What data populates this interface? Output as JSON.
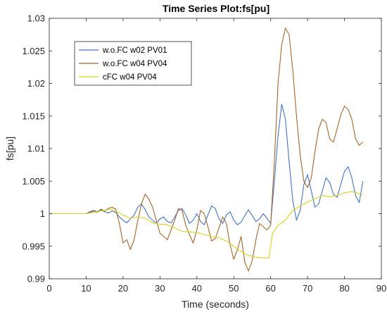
{
  "chart_data": {
    "type": "line",
    "title": "Time Series Plot:fs[pu]",
    "xlabel": "Time (seconds)",
    "ylabel": "fs[pu]",
    "xlim": [
      0,
      90
    ],
    "ylim": [
      0.99,
      1.03
    ],
    "xticks": [
      "0",
      "10",
      "20",
      "30",
      "40",
      "50",
      "60",
      "70",
      "80",
      "90"
    ],
    "yticks": [
      "0.99",
      "0.995",
      "1",
      "1.005",
      "1.01",
      "1.015",
      "1.02",
      "1.025",
      "1.03"
    ],
    "grid": false,
    "legend_position": "top-left",
    "series": [
      {
        "name": "w.o.FC w02 PV01",
        "color": "#4472c4",
        "points": [
          [
            0,
            1.0
          ],
          [
            10,
            1.0
          ],
          [
            11,
            1.0003
          ],
          [
            12,
            1.0005
          ],
          [
            13,
            1.0003
          ],
          [
            14,
            1.0006
          ],
          [
            15,
            1.0003
          ],
          [
            16,
            1.0001
          ],
          [
            17,
            1.0004
          ],
          [
            18,
            1.0002
          ],
          [
            19,
            0.9995
          ],
          [
            20,
            0.999
          ],
          [
            21,
            0.9986
          ],
          [
            22,
            0.9992
          ],
          [
            23,
            0.9998
          ],
          [
            24,
            1.001
          ],
          [
            25,
            1.0015
          ],
          [
            26,
            1.0006
          ],
          [
            27,
            0.9995
          ],
          [
            28,
            0.999
          ],
          [
            29,
            0.9985
          ],
          [
            30,
            0.9992
          ],
          [
            31,
            0.9995
          ],
          [
            32,
            0.9988
          ],
          [
            33,
            0.9986
          ],
          [
            34,
            0.9995
          ],
          [
            35,
            1.0005
          ],
          [
            36,
            1.0008
          ],
          [
            37,
            0.9998
          ],
          [
            38,
            0.9985
          ],
          [
            39,
            0.999
          ],
          [
            40,
            1.0
          ],
          [
            41,
            0.9988
          ],
          [
            42,
            0.9983
          ],
          [
            43,
            0.9998
          ],
          [
            44,
            1.0012
          ],
          [
            45,
            1.0008
          ],
          [
            46,
            0.9992
          ],
          [
            47,
            0.9985
          ],
          [
            48,
            0.9998
          ],
          [
            49,
            1.0003
          ],
          [
            50,
            0.999
          ],
          [
            51,
            0.9983
          ],
          [
            52,
            0.9987
          ],
          [
            53,
            0.9997
          ],
          [
            54,
            1.0006
          ],
          [
            55,
            0.9997
          ],
          [
            56,
            0.9988
          ],
          [
            57,
            0.9992
          ],
          [
            58,
            1.0
          ],
          [
            59,
            0.9993
          ],
          [
            60,
            0.9985
          ],
          [
            61,
            1.005
          ],
          [
            62,
            1.012
          ],
          [
            63,
            1.0168
          ],
          [
            64,
            1.0145
          ],
          [
            65,
            1.008
          ],
          [
            66,
            1.002
          ],
          [
            67,
            0.999
          ],
          [
            68,
            1.0005
          ],
          [
            69,
            1.0045
          ],
          [
            70,
            1.006
          ],
          [
            71,
            1.0035
          ],
          [
            72,
            1.001
          ],
          [
            73,
            1.0015
          ],
          [
            74,
            1.0035
          ],
          [
            75,
            1.0055
          ],
          [
            76,
            1.0048
          ],
          [
            77,
            1.003
          ],
          [
            78,
            1.0025
          ],
          [
            79,
            1.0045
          ],
          [
            80,
            1.0065
          ],
          [
            81,
            1.0072
          ],
          [
            82,
            1.0055
          ],
          [
            83,
            1.0028
          ],
          [
            84,
            1.0017
          ],
          [
            85,
            1.005
          ]
        ]
      },
      {
        "name": "w.o.FC w04 PV04",
        "color": "#a5652a",
        "points": [
          [
            0,
            1.0
          ],
          [
            10,
            1.0
          ],
          [
            11,
            1.0002
          ],
          [
            12,
            1.0004
          ],
          [
            13,
            1.0002
          ],
          [
            14,
            1.0007
          ],
          [
            15,
            1.0004
          ],
          [
            16,
            1.0008
          ],
          [
            17,
            1.001
          ],
          [
            18,
            1.0007
          ],
          [
            19,
            0.9985
          ],
          [
            20,
            0.9955
          ],
          [
            21,
            0.996
          ],
          [
            22,
            0.9945
          ],
          [
            23,
            0.996
          ],
          [
            24,
            0.999
          ],
          [
            25,
            1.0015
          ],
          [
            26,
            1.003
          ],
          [
            27,
            1.0022
          ],
          [
            28,
            1.001
          ],
          [
            29,
            0.999
          ],
          [
            30,
            0.997
          ],
          [
            31,
            0.9965
          ],
          [
            32,
            0.996
          ],
          [
            33,
            0.9975
          ],
          [
            34,
            0.999
          ],
          [
            35,
            1.0008
          ],
          [
            36,
            1.0005
          ],
          [
            37,
            0.9982
          ],
          [
            38,
            0.9968
          ],
          [
            39,
            0.9955
          ],
          [
            40,
            0.9975
          ],
          [
            41,
            1.0005
          ],
          [
            42,
            1.0
          ],
          [
            43,
            0.998
          ],
          [
            44,
            0.9958
          ],
          [
            45,
            0.9962
          ],
          [
            46,
            0.9978
          ],
          [
            47,
            0.9995
          ],
          [
            48,
            0.9985
          ],
          [
            49,
            0.9952
          ],
          [
            50,
            0.993
          ],
          [
            51,
            0.9945
          ],
          [
            52,
            0.9965
          ],
          [
            53,
            0.9925
          ],
          [
            54,
            0.9912
          ],
          [
            55,
            0.9928
          ],
          [
            56,
            0.996
          ],
          [
            57,
            0.9985
          ],
          [
            58,
            0.998
          ],
          [
            59,
            0.9975
          ],
          [
            60,
            0.9982
          ],
          [
            61,
            1.008
          ],
          [
            62,
            1.02
          ],
          [
            63,
            1.026
          ],
          [
            64,
            1.0285
          ],
          [
            65,
            1.0275
          ],
          [
            66,
            1.022
          ],
          [
            67,
            1.015
          ],
          [
            68,
            1.009
          ],
          [
            69,
            1.005
          ],
          [
            70,
            1.004
          ],
          [
            71,
            1.0055
          ],
          [
            72,
            1.0095
          ],
          [
            73,
            1.013
          ],
          [
            74,
            1.0145
          ],
          [
            75,
            1.014
          ],
          [
            76,
            1.0115
          ],
          [
            77,
            1.011
          ],
          [
            78,
            1.013
          ],
          [
            79,
            1.0152
          ],
          [
            80,
            1.0165
          ],
          [
            81,
            1.016
          ],
          [
            82,
            1.0145
          ],
          [
            83,
            1.0115
          ],
          [
            84,
            1.0105
          ],
          [
            85,
            1.011
          ]
        ]
      },
      {
        "name": "cFC w04 PV04",
        "color": "#d4d41f",
        "points": [
          [
            0,
            1.0
          ],
          [
            10,
            1.0
          ],
          [
            12,
            1.0002
          ],
          [
            14,
            1.0004
          ],
          [
            16,
            1.0006
          ],
          [
            17,
            1.0007
          ],
          [
            18,
            1.0004
          ],
          [
            20,
            0.9998
          ],
          [
            22,
            0.9993
          ],
          [
            24,
            0.9995
          ],
          [
            26,
            0.9993
          ],
          [
            28,
            0.9986
          ],
          [
            30,
            0.9984
          ],
          [
            32,
            0.9983
          ],
          [
            34,
            0.9978
          ],
          [
            36,
            0.9973
          ],
          [
            38,
            0.9972
          ],
          [
            40,
            0.9971
          ],
          [
            42,
            0.9968
          ],
          [
            44,
            0.9965
          ],
          [
            46,
            0.9963
          ],
          [
            48,
            0.9958
          ],
          [
            50,
            0.995
          ],
          [
            52,
            0.9942
          ],
          [
            54,
            0.9936
          ],
          [
            56,
            0.9933
          ],
          [
            58,
            0.9932
          ],
          [
            59.5,
            0.9932
          ],
          [
            60.5,
            0.997
          ],
          [
            62,
            0.9982
          ],
          [
            64,
            0.999
          ],
          [
            66,
            1.0005
          ],
          [
            68,
            1.0012
          ],
          [
            70,
            1.0018
          ],
          [
            72,
            1.0023
          ],
          [
            74,
            1.0028
          ],
          [
            76,
            1.0026
          ],
          [
            78,
            1.0028
          ],
          [
            80,
            1.0032
          ],
          [
            82,
            1.0034
          ],
          [
            84,
            1.0031
          ],
          [
            85,
            1.0029
          ]
        ]
      }
    ]
  }
}
